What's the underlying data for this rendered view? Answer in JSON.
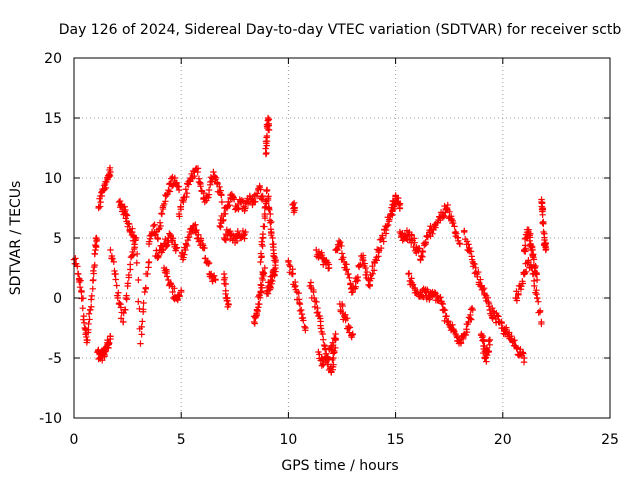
{
  "chart_data": {
    "type": "scatter",
    "title": "Day 126 of 2024, Sidereal Day-to-day VTEC variation (SDTVAR) for receiver sctb",
    "xlabel": "GPS time / hours",
    "ylabel": "SDTVAR / TECUs",
    "xlim": [
      0,
      25
    ],
    "ylim": [
      -10,
      20
    ],
    "xticks": [
      "0",
      "5",
      "10",
      "15",
      "20",
      "25"
    ],
    "yticks": [
      "-10",
      "-5",
      "0",
      "5",
      "10",
      "15",
      "20"
    ],
    "grid": true,
    "marker": "+",
    "color": "#ff0000",
    "series": [
      {
        "name": "SDTVAR",
        "segments": [
          {
            "x": [
              0.0,
              0.2,
              0.35,
              0.5,
              0.6,
              0.75,
              0.9,
              1.0,
              1.05
            ],
            "y": [
              3.2,
              2.0,
              0.5,
              -2.5,
              -3.5,
              -1.0,
              1.5,
              4.0,
              5.0
            ]
          },
          {
            "x": [
              1.1,
              1.2,
              1.3,
              1.4,
              1.5,
              1.6,
              1.7
            ],
            "y": [
              -4.5,
              -5.0,
              -4.8,
              -4.6,
              -4.2,
              -3.8,
              -3.2
            ]
          },
          {
            "x": [
              1.15,
              1.3,
              1.45,
              1.6,
              1.7
            ],
            "y": [
              7.5,
              8.5,
              9.5,
              10.2,
              10.5
            ]
          },
          {
            "x": [
              1.7,
              1.9,
              2.1,
              2.3,
              2.5,
              2.7,
              2.9,
              3.1,
              3.3,
              3.5
            ],
            "y": [
              4.0,
              2.0,
              -0.5,
              -2.0,
              1.0,
              3.5,
              5.0,
              -3.8,
              0.5,
              3.0
            ]
          },
          {
            "x": [
              2.1,
              2.25,
              2.4,
              2.55,
              2.7,
              2.85
            ],
            "y": [
              8.0,
              7.6,
              7.0,
              6.2,
              5.5,
              4.8
            ]
          },
          {
            "x": [
              3.5,
              3.7,
              3.9,
              4.1,
              4.3,
              4.5,
              4.7,
              4.9
            ],
            "y": [
              4.5,
              6.0,
              5.0,
              7.0,
              8.5,
              9.5,
              10.0,
              9.0
            ]
          },
          {
            "x": [
              3.8,
              4.0,
              4.2,
              4.4,
              4.6,
              4.8
            ],
            "y": [
              3.5,
              4.0,
              4.5,
              5.0,
              4.8,
              4.2
            ]
          },
          {
            "x": [
              4.2,
              4.4,
              4.6,
              4.8,
              5.0
            ],
            "y": [
              2.5,
              1.5,
              0.5,
              0.0,
              0.5
            ]
          },
          {
            "x": [
              4.9,
              5.1,
              5.3,
              5.5,
              5.7,
              5.9,
              6.1,
              6.3,
              6.5,
              6.7,
              6.9
            ],
            "y": [
              7.0,
              8.0,
              9.5,
              10.0,
              10.8,
              9.5,
              8.0,
              9.0,
              10.5,
              9.5,
              8.0
            ]
          },
          {
            "x": [
              5.0,
              5.2,
              5.4,
              5.6,
              5.8,
              6.0,
              6.2,
              6.4,
              6.6
            ],
            "y": [
              3.5,
              4.0,
              5.5,
              6.0,
              5.0,
              4.5,
              3.0,
              2.0,
              1.5
            ]
          },
          {
            "x": [
              6.8,
              7.0,
              7.2,
              7.4,
              7.6,
              7.8,
              8.0,
              8.2,
              8.4,
              8.6,
              8.8
            ],
            "y": [
              6.0,
              7.0,
              8.0,
              8.5,
              7.5,
              8.0,
              7.5,
              8.5,
              8.0,
              9.0,
              8.5
            ]
          },
          {
            "x": [
              7.0,
              7.2,
              7.4,
              7.6,
              7.8,
              8.0
            ],
            "y": [
              5.0,
              5.5,
              4.8,
              5.2,
              5.0,
              5.5
            ]
          },
          {
            "x": [
              7.0,
              7.1,
              7.2
            ],
            "y": [
              2.0,
              0.0,
              -0.5
            ]
          },
          {
            "x": [
              8.4,
              8.5,
              8.6,
              8.7,
              8.8,
              8.9
            ],
            "y": [
              -2.0,
              -1.5,
              -0.5,
              0.5,
              1.5,
              2.5
            ]
          },
          {
            "x": [
              8.7,
              8.8,
              8.9,
              9.0,
              9.1,
              9.2,
              9.3,
              9.4
            ],
            "y": [
              3.0,
              5.0,
              7.0,
              9.0,
              7.5,
              5.5,
              4.0,
              3.0
            ]
          },
          {
            "x": [
              8.95,
              9.0,
              9.05,
              9.1
            ],
            "y": [
              12.0,
              13.5,
              15.0,
              14.0
            ]
          },
          {
            "x": [
              9.0,
              9.1,
              9.2,
              9.3,
              9.4
            ],
            "y": [
              0.5,
              1.0,
              1.5,
              2.0,
              2.5
            ]
          },
          {
            "x": [
              10.2,
              10.3
            ],
            "y": [
              7.8,
              7.5
            ]
          },
          {
            "x": [
              10.0,
              10.2,
              10.4,
              10.6,
              10.8
            ],
            "y": [
              3.0,
              2.0,
              0.5,
              -1.0,
              -2.5
            ]
          },
          {
            "x": [
              11.0,
              11.2,
              11.4,
              11.6,
              11.8,
              12.0,
              12.1,
              12.2
            ],
            "y": [
              1.0,
              0.0,
              -1.5,
              -3.0,
              -5.0,
              -6.2,
              -5.0,
              -3.0
            ]
          },
          {
            "x": [
              11.3,
              11.5,
              11.7,
              11.9
            ],
            "y": [
              4.0,
              3.5,
              3.0,
              2.5
            ]
          },
          {
            "x": [
              11.4,
              11.6,
              11.8,
              12.0,
              12.2
            ],
            "y": [
              -4.5,
              -5.5,
              -5.0,
              -4.0,
              -3.5
            ]
          },
          {
            "x": [
              12.2,
              12.4,
              12.6,
              12.8,
              13.0,
              13.2,
              13.4,
              13.6,
              13.8,
              14.0,
              14.2,
              14.4,
              14.6,
              14.8
            ],
            "y": [
              4.0,
              4.5,
              3.0,
              2.0,
              0.5,
              1.5,
              3.5,
              2.5,
              1.0,
              3.0,
              4.0,
              5.0,
              6.0,
              7.0
            ]
          },
          {
            "x": [
              12.4,
              12.6,
              12.8,
              13.0
            ],
            "y": [
              -0.5,
              -1.5,
              -2.5,
              -3.0
            ]
          },
          {
            "x": [
              14.8,
              14.9,
              15.0,
              15.1,
              15.2
            ],
            "y": [
              7.0,
              7.8,
              8.3,
              8.0,
              7.5
            ]
          },
          {
            "x": [
              15.2,
              15.4,
              15.6,
              15.8,
              16.0,
              16.2
            ],
            "y": [
              5.5,
              5.0,
              5.3,
              4.8,
              4.0,
              3.5
            ]
          },
          {
            "x": [
              15.6,
              15.8,
              16.0,
              16.2,
              16.4,
              16.6,
              16.8,
              17.0,
              17.2
            ],
            "y": [
              2.0,
              1.0,
              0.5,
              0.2,
              0.5,
              0.0,
              0.3,
              0.0,
              -0.5
            ]
          },
          {
            "x": [
              16.2,
              16.4,
              16.6,
              16.8,
              17.0,
              17.2,
              17.4,
              17.6,
              17.8,
              18.0
            ],
            "y": [
              3.5,
              4.5,
              5.5,
              6.0,
              6.5,
              7.0,
              7.5,
              6.5,
              5.5,
              4.5
            ]
          },
          {
            "x": [
              17.2,
              17.4,
              17.6,
              17.8,
              18.0,
              18.2,
              18.4,
              18.6
            ],
            "y": [
              -1.0,
              -2.0,
              -2.5,
              -3.0,
              -3.5,
              -3.0,
              -2.0,
              -1.0
            ]
          },
          {
            "x": [
              18.2,
              18.4,
              18.6,
              18.8,
              19.0,
              19.2,
              19.4
            ],
            "y": [
              5.5,
              4.0,
              3.0,
              2.0,
              1.0,
              0.0,
              -1.0
            ]
          },
          {
            "x": [
              19.0,
              19.1,
              19.2,
              19.3,
              19.4
            ],
            "y": [
              -3.0,
              -4.0,
              -5.0,
              -4.5,
              -3.5
            ]
          },
          {
            "x": [
              19.4,
              19.6,
              19.8,
              20.0,
              20.2,
              20.4,
              20.6,
              20.8,
              21.0
            ],
            "y": [
              -1.0,
              -1.5,
              -2.0,
              -2.5,
              -3.0,
              -3.5,
              -4.0,
              -4.5,
              -5.0
            ]
          },
          {
            "x": [
              20.6,
              20.8,
              21.0,
              21.2,
              21.4,
              21.6,
              21.8
            ],
            "y": [
              0.0,
              1.0,
              2.0,
              3.0,
              2.0,
              0.0,
              -2.0
            ]
          },
          {
            "x": [
              21.0,
              21.1,
              21.2,
              21.3,
              21.4,
              21.5,
              21.6
            ],
            "y": [
              4.0,
              5.0,
              5.5,
              4.5,
              3.5,
              2.5,
              1.5
            ]
          },
          {
            "x": [
              21.8,
              21.85,
              21.9,
              21.95,
              22.0
            ],
            "y": [
              8.0,
              7.5,
              5.5,
              4.5,
              4.0
            ]
          }
        ]
      }
    ]
  }
}
